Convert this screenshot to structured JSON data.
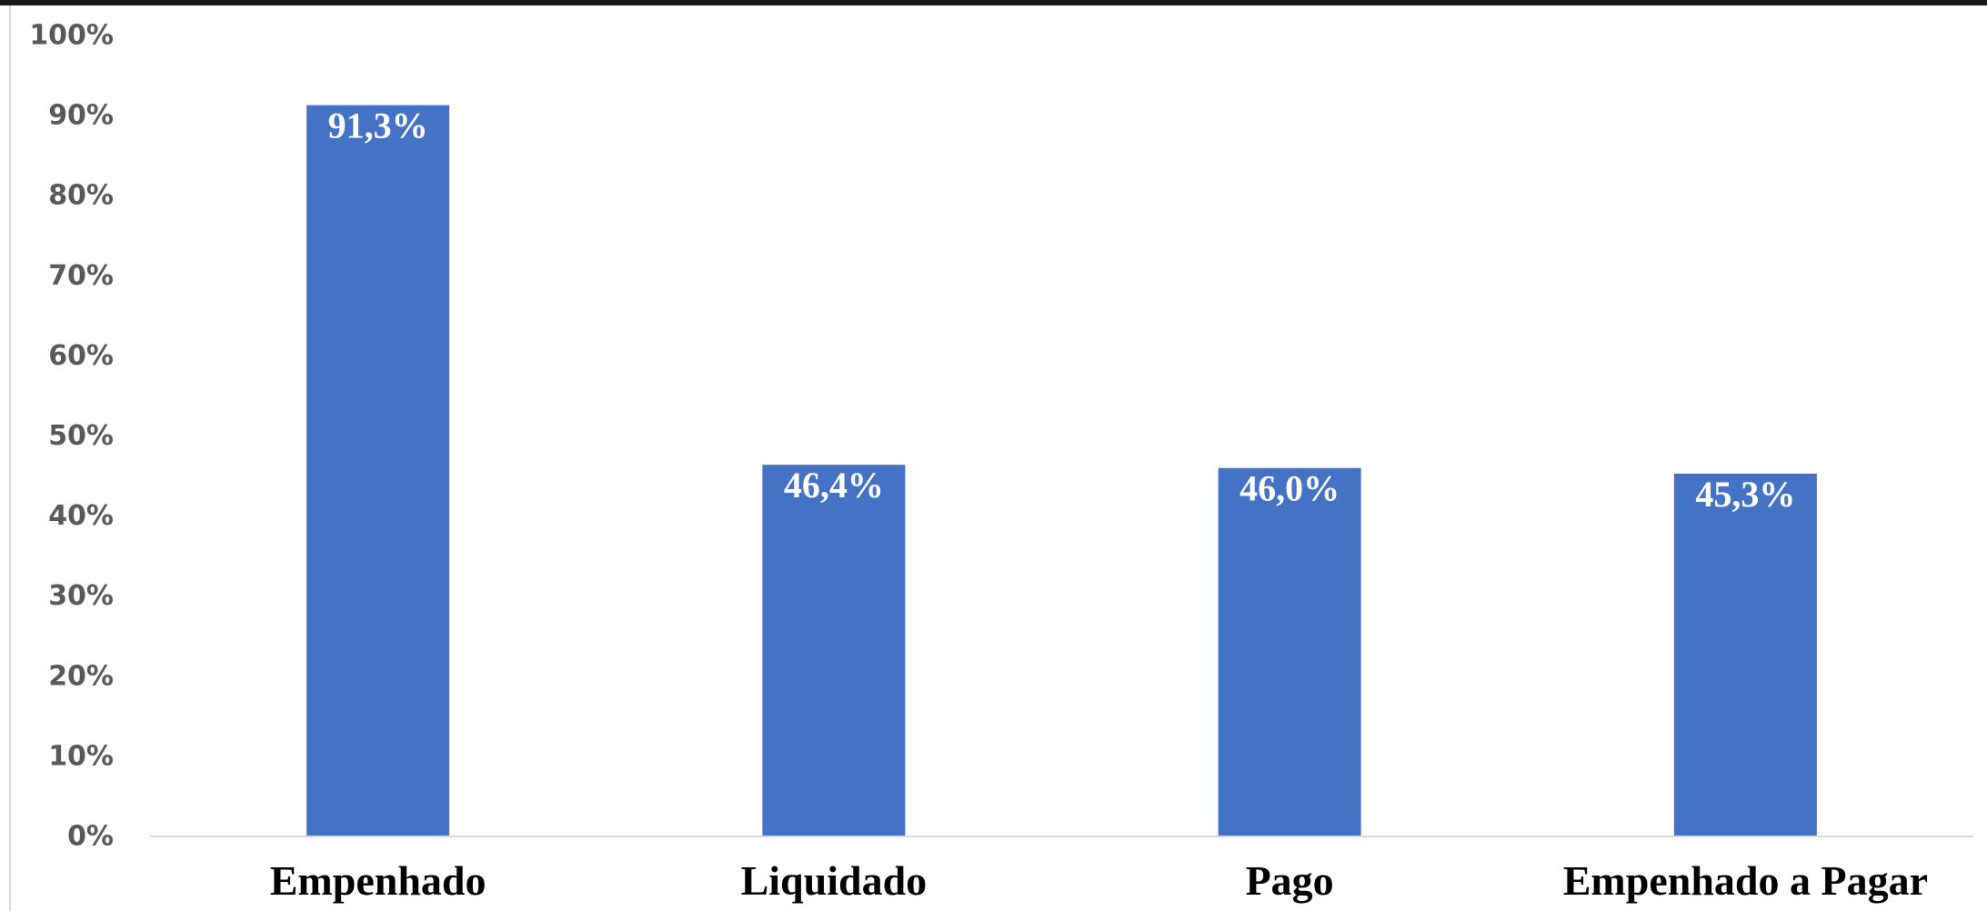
{
  "colors": {
    "bar": "#4472C4",
    "axis": "#D9D9D9",
    "tick_text": "#595959",
    "category_text": "#000000",
    "label_text": "#FFFFFF"
  },
  "chart_data": {
    "type": "bar",
    "categories": [
      "Empenhado",
      "Liquidado",
      "Pago",
      "Empenhado a Pagar"
    ],
    "values": [
      91.3,
      46.4,
      46.0,
      45.3
    ],
    "data_labels": [
      "91,3%",
      "46,4%",
      "46,0%",
      "45,3%"
    ],
    "y_ticks": [
      "0%",
      "10%",
      "20%",
      "30%",
      "40%",
      "50%",
      "60%",
      "70%",
      "80%",
      "90%",
      "100%"
    ],
    "ylim": [
      0,
      100
    ],
    "grid": false,
    "legend": "none"
  }
}
